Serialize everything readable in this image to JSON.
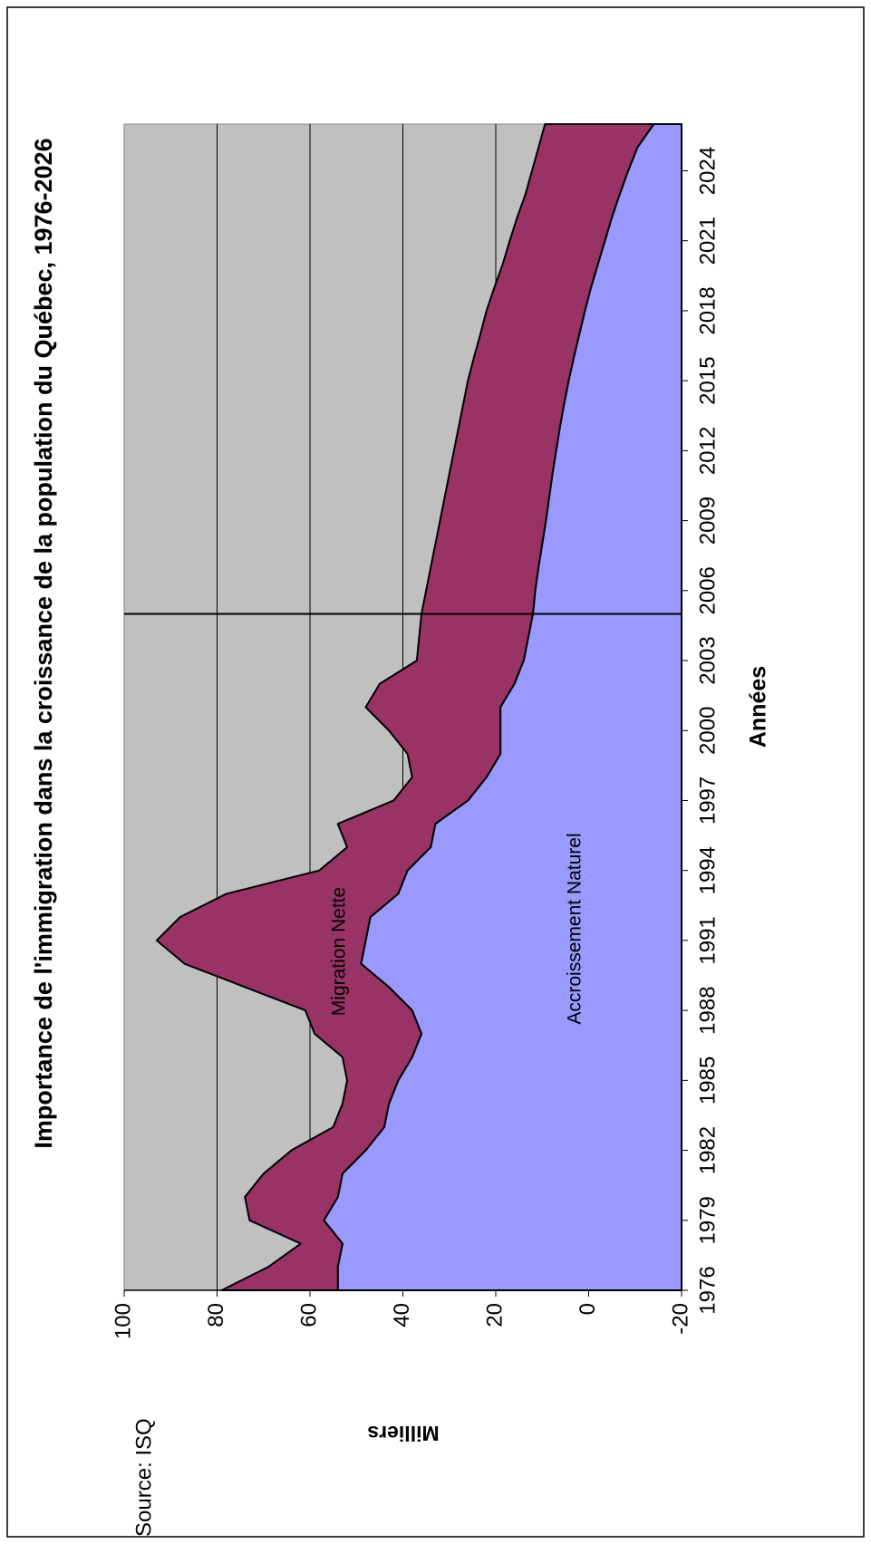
{
  "chart_data": {
    "type": "stacked_area",
    "title": "Importance de l'immigration dans la croissance de la population du Québec, 1976-2026",
    "x_label": "Années",
    "y_label": "Milliers",
    "source": "Source: ISQ",
    "x": [
      1976,
      1977,
      1978,
      1979,
      1980,
      1981,
      1982,
      1983,
      1984,
      1985,
      1986,
      1987,
      1988,
      1989,
      1990,
      1991,
      1992,
      1993,
      1994,
      1995,
      1996,
      1997,
      1998,
      1999,
      2000,
      2001,
      2002,
      2003,
      2004,
      2005,
      2006,
      2007,
      2008,
      2009,
      2010,
      2011,
      2012,
      2013,
      2014,
      2015,
      2016,
      2017,
      2018,
      2019,
      2020,
      2021,
      2022,
      2023,
      2024,
      2025,
      2026
    ],
    "xlim": [
      1976,
      2026
    ],
    "xticks": [
      1976,
      1979,
      1982,
      1985,
      1988,
      1991,
      1994,
      1997,
      2000,
      2003,
      2006,
      2009,
      2012,
      2015,
      2018,
      2021,
      2024
    ],
    "ylim": [
      -20,
      100
    ],
    "yticks": [
      -20,
      0,
      20,
      40,
      60,
      80,
      100
    ],
    "grid": true,
    "vline": 2005,
    "series": [
      {
        "name": "Accroissement Naturel",
        "color": "#9999ff",
        "values": [
          54,
          54,
          53,
          57,
          54,
          53,
          48,
          44,
          43,
          41,
          38,
          36,
          38,
          43,
          49,
          48,
          47,
          41,
          39,
          34,
          33,
          26,
          22,
          19,
          19,
          19,
          16,
          14,
          13,
          12,
          11.5,
          10.8,
          10,
          9.2,
          8.5,
          7.8,
          7,
          6.2,
          5.3,
          4.3,
          3.2,
          2,
          0.8,
          -0.5,
          -2,
          -3.5,
          -5,
          -6.7,
          -8.5,
          -10.5,
          -14
        ]
      },
      {
        "name": "Migration Nette",
        "color": "#993366",
        "values": [
          25,
          15,
          9,
          16,
          20,
          17,
          16,
          11,
          10,
          11,
          15,
          23,
          23,
          31,
          38,
          45,
          41,
          37,
          19,
          18,
          21,
          16,
          16,
          20,
          24,
          29,
          29,
          23,
          23.5,
          24,
          23.5,
          23.2,
          23,
          22.8,
          22.5,
          22.2,
          22,
          21.8,
          21.7,
          21.7,
          21.5,
          21.3,
          21.2,
          20.8,
          20.5,
          20.5,
          20.4,
          20.3,
          20.7,
          21.3,
          23.4
        ]
      }
    ]
  }
}
